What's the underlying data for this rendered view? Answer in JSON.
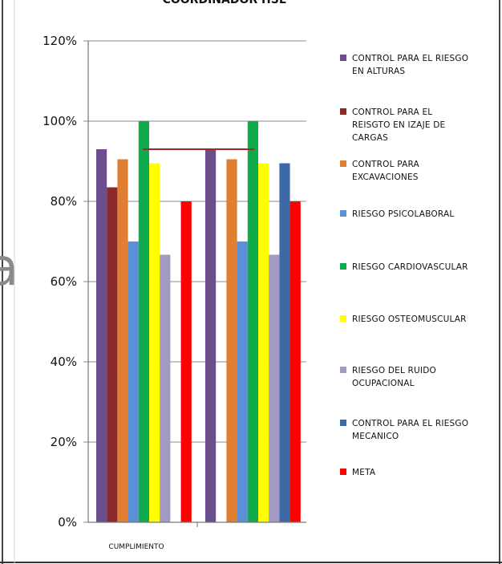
{
  "header": {
    "partial_title": "COORDINADOR HSE",
    "bg_letter": "a"
  },
  "chart_data": {
    "type": "bar",
    "categories": [
      "CUMPLIMIENTO",
      ""
    ],
    "ylim": [
      0,
      1.2
    ],
    "y_ticks": [
      "0%",
      "20%",
      "40%",
      "60%",
      "80%",
      "100%",
      "120%"
    ],
    "grid": true,
    "legend_position": "right",
    "series": [
      {
        "name": "CONTROL PARA EL RIESGO EN ALTURAS",
        "color": "#6a4f8c",
        "values": [
          0.93,
          0.93
        ]
      },
      {
        "name": "CONTROL PARA EL REISGTO EN IZAJE DE CARGAS",
        "color": "#8b2a2a",
        "values": [
          0.835,
          null
        ]
      },
      {
        "name": "CONTROL PARA EXCAVACIONES",
        "color": "#e07f32",
        "values": [
          0.905,
          0.905
        ]
      },
      {
        "name": "RIESGO PSICOLABORAL",
        "color": "#5b8fd6",
        "values": [
          0.7,
          0.7
        ]
      },
      {
        "name": "RIESGO CARDIOVASCULAR",
        "color": "#0faa49",
        "values": [
          1.0,
          1.0
        ]
      },
      {
        "name": "RIESGO OSTEOMUSCULAR",
        "color": "#ffff00",
        "values": [
          0.895,
          0.895
        ]
      },
      {
        "name": "RIESGO DEL RUIDO OCUPACIONAL",
        "color": "#a39ac2",
        "values": [
          0.667,
          0.667
        ]
      },
      {
        "name": "CONTROL PARA EL RIESGO MECANICO",
        "color": "#3d6aa6",
        "values": [
          null,
          0.895
        ]
      },
      {
        "name": "META",
        "color": "#ff0000",
        "values": [
          0.8,
          0.8
        ]
      }
    ],
    "reference_line": {
      "value": 0.93,
      "color": "#a0282a"
    }
  }
}
